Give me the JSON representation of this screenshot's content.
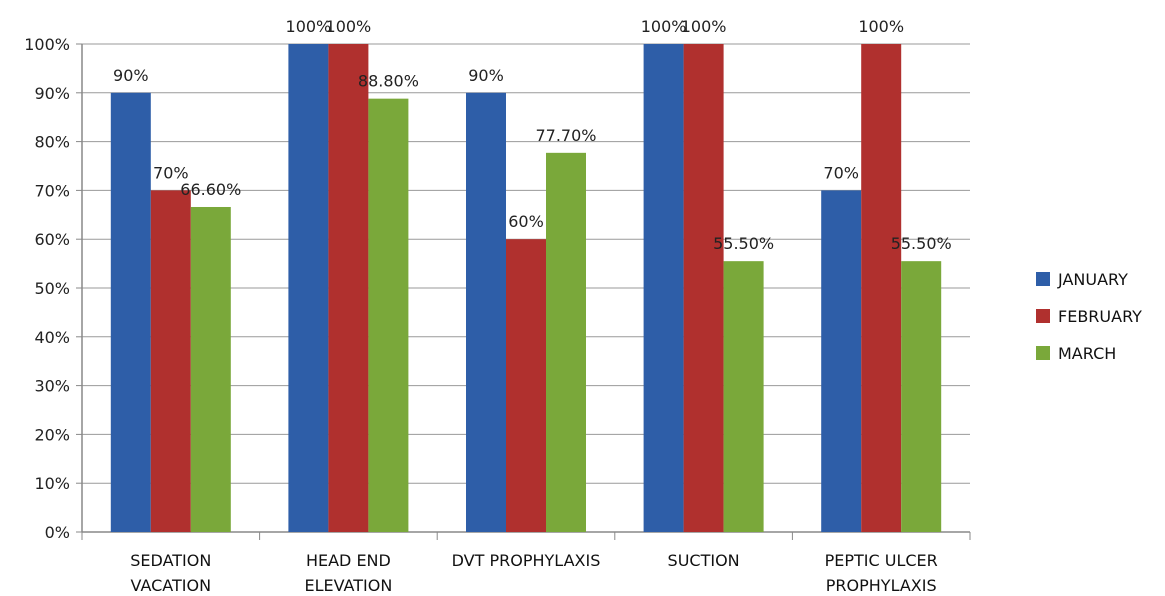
{
  "chart_data": {
    "type": "bar",
    "title": "",
    "xlabel": "",
    "ylabel": "",
    "ylim": [
      0,
      100
    ],
    "yticks": [
      "0%",
      "10%",
      "20%",
      "30%",
      "40%",
      "50%",
      "60%",
      "70%",
      "80%",
      "90%",
      "100%"
    ],
    "categories": [
      [
        "SEDATION",
        "VACATION"
      ],
      [
        "HEAD END",
        "ELEVATION"
      ],
      [
        "DVT PROPHYLAXIS"
      ],
      [
        "SUCTION"
      ],
      [
        "PEPTIC ULCER",
        "PROPHYLAXIS"
      ]
    ],
    "series": [
      {
        "name": "JANUARY",
        "color": "#2E5EA8",
        "values": [
          90,
          100,
          90,
          100,
          70
        ],
        "labels": [
          "90%",
          "100%",
          "90%",
          "100%",
          "70%"
        ]
      },
      {
        "name": "FEBRUARY",
        "color": "#B0302E",
        "values": [
          70,
          100,
          60,
          100,
          100
        ],
        "labels": [
          "70%",
          "100%",
          "60%",
          "100%",
          "100%"
        ]
      },
      {
        "name": "MARCH",
        "color": "#7AA83A",
        "values": [
          66.6,
          88.8,
          77.7,
          55.5,
          55.5
        ],
        "labels": [
          "66.60%",
          "88.80%",
          "77.70%",
          "55.50%",
          "55.50%"
        ]
      }
    ],
    "grid": true,
    "legend_position": "right"
  }
}
